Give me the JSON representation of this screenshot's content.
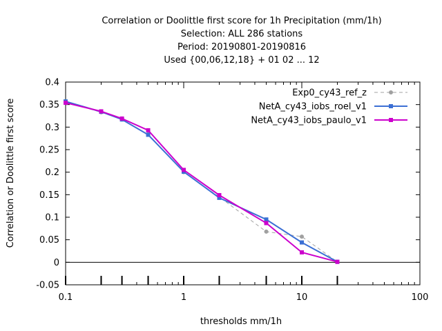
{
  "chart_data": {
    "type": "line",
    "title_lines": [
      "Correlation or Doolittle first score  for 1h Precipitation (mm/1h)",
      "Selection: ALL    286 stations",
      "Period: 20190801-20190816",
      "Used {00,06,12,18} + 01 02 ... 12"
    ],
    "xlabel": "thresholds mm/1h",
    "ylabel": "Correlation or Doolittle first score",
    "xscale": "log",
    "xlim": [
      0.1,
      100
    ],
    "ylim": [
      -0.05,
      0.4
    ],
    "xticks": [
      "0.1",
      "1",
      "10",
      "100"
    ],
    "yticks": [
      "-0.05",
      "0",
      "0.05",
      "0.1",
      "0.15",
      "0.2",
      "0.25",
      "0.3",
      "0.35",
      "0.4"
    ],
    "x_minor_marks": [
      0.1,
      0.2,
      0.3,
      0.5,
      1,
      2,
      5,
      10,
      20
    ],
    "legend_position": "top-right",
    "x": [
      0.1,
      0.2,
      0.3,
      0.5,
      1,
      2,
      5,
      10,
      20
    ],
    "series": [
      {
        "name": "Exp0_cy43_ref_z",
        "color": "#a0a0a0",
        "dash": true,
        "values": [
          0.356,
          0.333,
          0.317,
          0.284,
          0.2,
          0.145,
          0.068,
          0.057,
          0.001
        ]
      },
      {
        "name": "NetA_cy43_iobs_roel_v1",
        "color": "#3b6fd4",
        "dash": false,
        "values": [
          0.357,
          0.334,
          0.317,
          0.283,
          0.201,
          0.143,
          0.095,
          0.044,
          0.001
        ]
      },
      {
        "name": "NetA_cy43_iobs_paulo_v1",
        "color": "#cc00cc",
        "dash": false,
        "values": [
          0.354,
          0.335,
          0.319,
          0.293,
          0.205,
          0.149,
          0.087,
          0.022,
          0.001
        ]
      }
    ]
  }
}
